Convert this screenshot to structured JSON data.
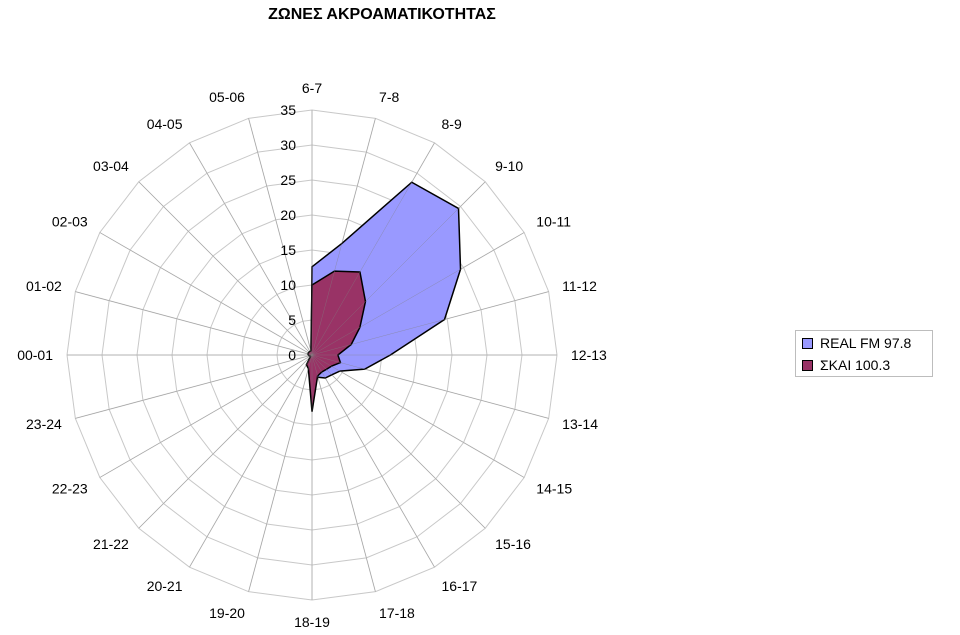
{
  "chart_data": {
    "type": "radar",
    "title": "ΖΩΝΕΣ ΑΚΡΟΑΜΑΤΙΚΟΤΗΤΑΣ",
    "categories": [
      "6-7",
      "7-8",
      "8-9",
      "9-10",
      "10-11",
      "11-12",
      "12-13",
      "13-14",
      "14-15",
      "15-16",
      "16-17",
      "17-18",
      "18-19",
      "19-20",
      "20-21",
      "21-22",
      "22-23",
      "23-24",
      "00-01",
      "01-02",
      "02-03",
      "03-04",
      "04-05",
      "05-06"
    ],
    "rlim": [
      0,
      35
    ],
    "ticks": [
      0,
      5,
      10,
      15,
      20,
      25,
      30,
      35
    ],
    "grid": true,
    "legend_position": "right",
    "series": [
      {
        "name": "REAL FM 97.8",
        "color": "#9999ff",
        "values": [
          12.6,
          16.5,
          28.5,
          29.6,
          24.5,
          19.6,
          11.2,
          7.8,
          4.6,
          4.0,
          3.8,
          3.3,
          3.3,
          0.6,
          0.4,
          0.3,
          0.3,
          0.4,
          0.5,
          0.5,
          0.5,
          0.5,
          0.5,
          0.4
        ]
      },
      {
        "name": "ΣΚΑΙ 100.3",
        "color": "#993366",
        "values": [
          10.0,
          12.4,
          13.7,
          10.8,
          7.9,
          5.8,
          3.7,
          4.2,
          3.2,
          2.9,
          2.8,
          3.1,
          8.1,
          2.0,
          1.6,
          0.3,
          0.3,
          0.4,
          0.5,
          0.6,
          0.6,
          0.6,
          0.6,
          0.6
        ]
      }
    ]
  }
}
